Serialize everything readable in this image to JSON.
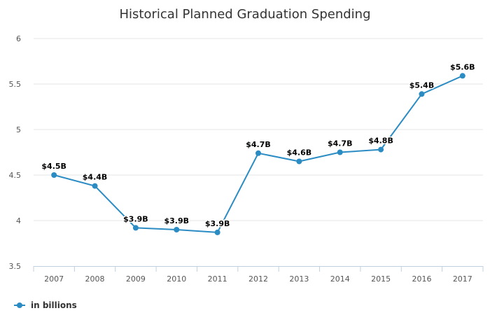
{
  "chart_data": {
    "type": "line",
    "title": "Historical Planned Graduation Spending",
    "categories": [
      "2007",
      "2008",
      "2009",
      "2010",
      "2011",
      "2012",
      "2013",
      "2014",
      "2015",
      "2016",
      "2017"
    ],
    "series": [
      {
        "name": "in billions",
        "color": "#2b8cc4",
        "values": [
          4.5,
          4.38,
          3.92,
          3.9,
          3.87,
          4.74,
          4.65,
          4.75,
          4.78,
          5.39,
          5.59
        ],
        "labels": [
          "$4.5B",
          "$4.4B",
          "$3.9B",
          "$3.9B",
          "$3.9B",
          "$4.7B",
          "$4.6B",
          "$4.7B",
          "$4.8B",
          "$5.4B",
          "$5.6B"
        ]
      }
    ],
    "y_ticks": [
      "3.5",
      "4",
      "4.5",
      "5",
      "5.5",
      "6"
    ],
    "ylim": [
      3.5,
      6
    ],
    "grid": true,
    "legend_position": "bottom-left"
  }
}
